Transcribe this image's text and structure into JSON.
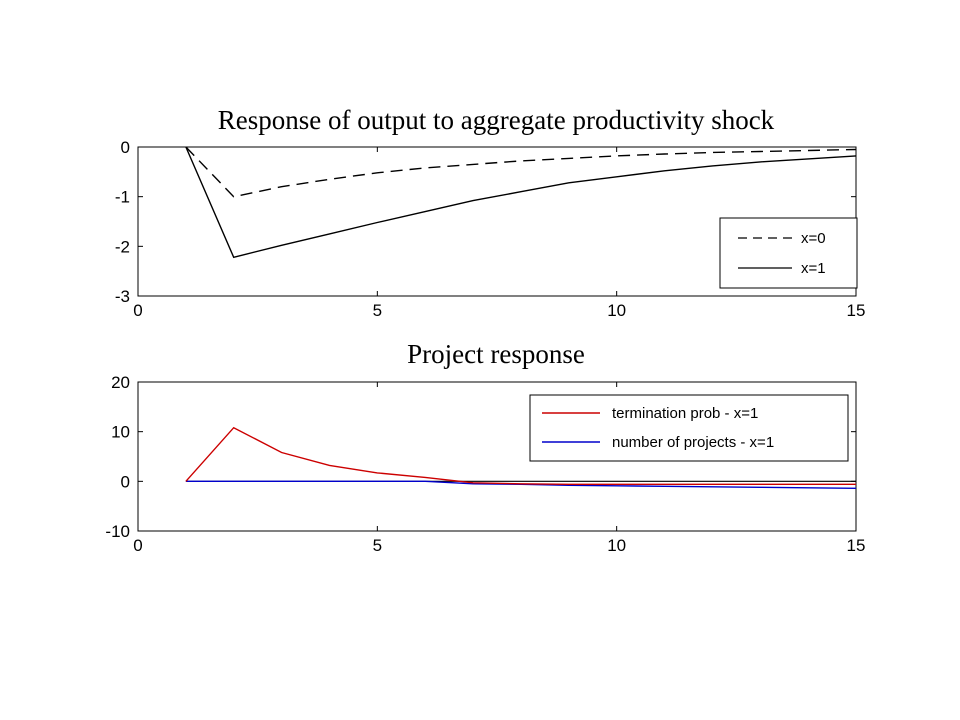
{
  "chart_data": [
    {
      "type": "line",
      "title": "Response of output to aggregate productivity shock",
      "xlabel": "",
      "ylabel": "",
      "xlim": [
        0,
        15
      ],
      "ylim": [
        -3,
        0
      ],
      "xticks": [
        0,
        5,
        10,
        15
      ],
      "yticks": [
        0,
        -1,
        -2,
        -3
      ],
      "xtick_labels": [
        "0",
        "5",
        "10",
        "15"
      ],
      "ytick_labels": [
        "0",
        "-1",
        "-2",
        "-3"
      ],
      "grid": false,
      "legend_position": "bottom-right",
      "series": [
        {
          "name": "x=0",
          "style": "dashed",
          "color": "#000000",
          "x": [
            1,
            2,
            3,
            4,
            5,
            6,
            7,
            8,
            9,
            10,
            11,
            12,
            13,
            14,
            15
          ],
          "y": [
            0,
            -1.0,
            -0.8,
            -0.65,
            -0.52,
            -0.42,
            -0.35,
            -0.28,
            -0.23,
            -0.18,
            -0.14,
            -0.11,
            -0.09,
            -0.07,
            -0.05
          ]
        },
        {
          "name": "x=1",
          "style": "solid",
          "color": "#000000",
          "x": [
            1,
            2,
            3,
            4,
            5,
            6,
            7,
            8,
            9,
            10,
            11,
            12,
            13,
            14,
            15
          ],
          "y": [
            0,
            -2.22,
            -1.98,
            -1.75,
            -1.52,
            -1.3,
            -1.08,
            -0.9,
            -0.72,
            -0.6,
            -0.48,
            -0.38,
            -0.3,
            -0.24,
            -0.18
          ]
        }
      ]
    },
    {
      "type": "line",
      "title": "Project response",
      "xlabel": "",
      "ylabel": "",
      "xlim": [
        0,
        15
      ],
      "ylim": [
        -10,
        20
      ],
      "xticks": [
        0,
        5,
        10,
        15
      ],
      "yticks": [
        20,
        10,
        0,
        -10
      ],
      "xtick_labels": [
        "0",
        "5",
        "10",
        "15"
      ],
      "ytick_labels": [
        "20",
        "10",
        "0",
        "-10"
      ],
      "grid": false,
      "legend_position": "top-right",
      "zero_line": true,
      "series": [
        {
          "name": "termination prob - x=1",
          "style": "solid",
          "color": "#cc0000",
          "x": [
            1,
            2,
            3,
            4,
            5,
            6,
            7,
            8,
            9,
            10,
            11,
            12,
            13,
            14,
            15
          ],
          "y": [
            0,
            10.8,
            5.8,
            3.2,
            1.7,
            0.8,
            -0.3,
            -0.5,
            -0.6,
            -0.6,
            -0.6,
            -0.6,
            -0.6,
            -0.6,
            -0.6
          ]
        },
        {
          "name": "number of projects - x=1",
          "style": "solid",
          "color": "#0000cc",
          "x": [
            1,
            2,
            3,
            4,
            5,
            6,
            7,
            8,
            9,
            10,
            11,
            12,
            13,
            14,
            15
          ],
          "y": [
            0,
            0,
            0,
            0,
            0,
            0,
            -0.5,
            -0.6,
            -0.8,
            -0.9,
            -1.0,
            -1.1,
            -1.2,
            -1.3,
            -1.4
          ]
        }
      ]
    }
  ]
}
